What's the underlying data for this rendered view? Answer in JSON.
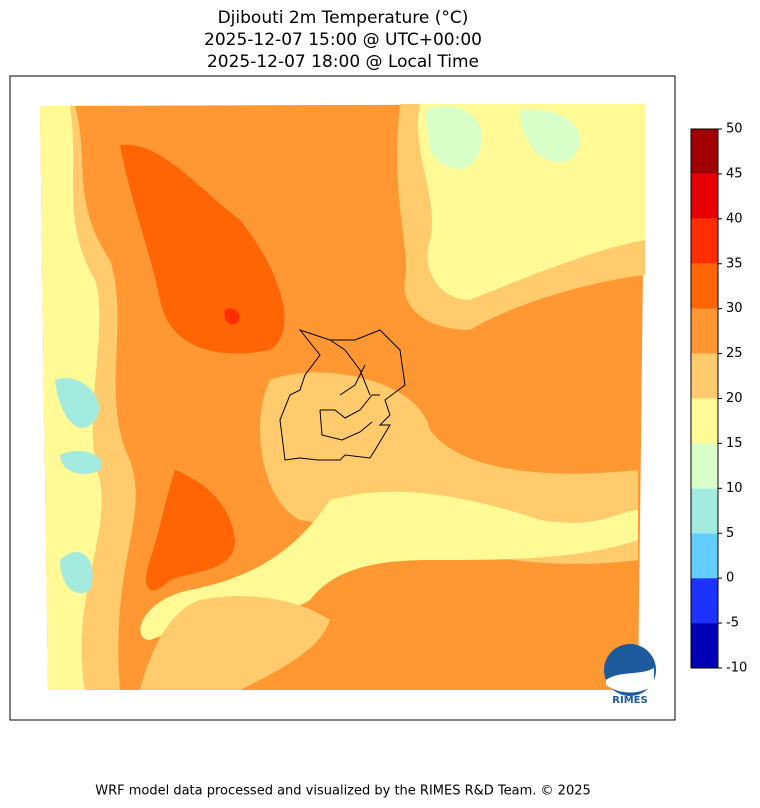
{
  "title": [
    "Djibouti 2m Temperature (°C)",
    "2025-12-07 15:00 @ UTC+00:00",
    "2025-12-07 18:00 @ Local Time"
  ],
  "colorbar": {
    "ticks": [
      -10,
      -5,
      0,
      5,
      10,
      15,
      20,
      25,
      30,
      35,
      40,
      45,
      50
    ],
    "colors": [
      "#0000b4",
      "#1e32ff",
      "#64cdff",
      "#a3eadf",
      "#d8ffc8",
      "#fffa96",
      "#ffcb6c",
      "#ff9833",
      "#ff6405",
      "#ff2d00",
      "#e60000",
      "#a00000"
    ]
  },
  "logo": "RIMES",
  "footer": "WRF model data processed and visualized by the RIMES R&D Team. © 2025"
}
